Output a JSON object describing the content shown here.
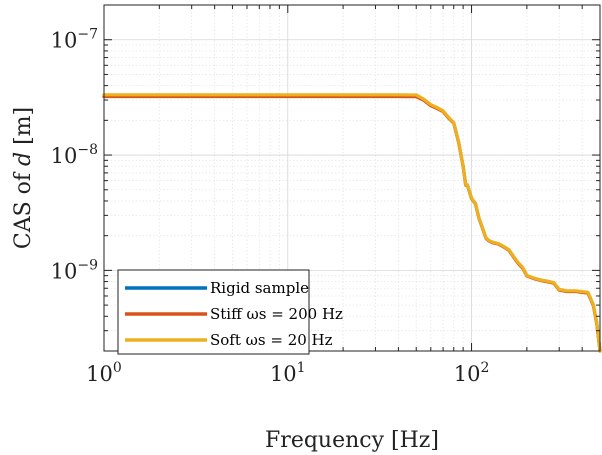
{
  "chart_data": {
    "type": "line",
    "title": "",
    "xlabel": "Frequency [Hz]",
    "ylabel": "CAS of d [m]",
    "xscale": "log",
    "yscale": "log",
    "xlim": [
      1,
      500
    ],
    "ylim": [
      2e-10,
      2e-07
    ],
    "grid": true,
    "legend_position": "bottom-left",
    "x_ticks": [
      {
        "value": 1,
        "base": "10",
        "exp": "0"
      },
      {
        "value": 10,
        "base": "10",
        "exp": "1"
      },
      {
        "value": 100,
        "base": "10",
        "exp": "2"
      }
    ],
    "y_ticks": [
      {
        "value": 1e-09,
        "base": "10",
        "exp": "−9"
      },
      {
        "value": 1e-08,
        "base": "10",
        "exp": "−8"
      },
      {
        "value": 1e-07,
        "base": "10",
        "exp": "−7"
      }
    ],
    "x": [
      1,
      10,
      40,
      50,
      55,
      60,
      65,
      70,
      75,
      80,
      85,
      90,
      93,
      95,
      100,
      105,
      110,
      115,
      120,
      125,
      130,
      140,
      150,
      160,
      170,
      180,
      190,
      200,
      220,
      240,
      260,
      280,
      300,
      330,
      370,
      400,
      430,
      460,
      480,
      500
    ],
    "series": [
      {
        "name": "Rigid sample",
        "color": "#0072BD",
        "values": [
          3.25e-08,
          3.25e-08,
          3.25e-08,
          3.24e-08,
          3e-08,
          2.7e-08,
          2.55e-08,
          2.4e-08,
          2.1e-08,
          1.9e-08,
          1.3e-08,
          8e-09,
          5.5e-09,
          5.5e-09,
          4.2e-09,
          3.8e-09,
          2.8e-09,
          2.3e-09,
          1.9e-09,
          1.8e-09,
          1.75e-09,
          1.7e-09,
          1.6e-09,
          1.5e-09,
          1.3e-09,
          1.15e-09,
          1.05e-09,
          9e-10,
          8.5e-10,
          8.2e-10,
          8e-10,
          7.8e-10,
          6.8e-10,
          6.6e-10,
          6.6e-10,
          6.5e-10,
          6.4e-10,
          5e-10,
          3.5e-10,
          2e-10
        ]
      },
      {
        "name": "Stiff ω_s = 200 Hz",
        "color": "#D95319",
        "values": [
          3.22e-08,
          3.22e-08,
          3.22e-08,
          3.21e-08,
          2.98e-08,
          2.68e-08,
          2.53e-08,
          2.38e-08,
          2.09e-08,
          1.89e-08,
          1.29e-08,
          7.95e-09,
          5.47e-09,
          5.47e-09,
          4.18e-09,
          3.78e-09,
          2.79e-09,
          2.29e-09,
          1.89e-09,
          1.79e-09,
          1.74e-09,
          1.69e-09,
          1.59e-09,
          1.49e-09,
          1.29e-09,
          1.14e-09,
          1.04e-09,
          8.95e-10,
          8.45e-10,
          8.15e-10,
          7.95e-10,
          7.75e-10,
          6.75e-10,
          6.55e-10,
          6.55e-10,
          6.45e-10,
          6.35e-10,
          4.95e-10,
          3.45e-10,
          2e-10
        ]
      },
      {
        "name": "Soft ω_s = 20 Hz",
        "color": "#EDB120",
        "values": [
          3.33e-08,
          3.33e-08,
          3.33e-08,
          3.32e-08,
          3.05e-08,
          2.74e-08,
          2.58e-08,
          2.42e-08,
          2.12e-08,
          1.91e-08,
          1.31e-08,
          8.05e-09,
          5.53e-09,
          5.53e-09,
          4.22e-09,
          3.82e-09,
          2.81e-09,
          2.31e-09,
          1.91e-09,
          1.81e-09,
          1.76e-09,
          1.71e-09,
          1.61e-09,
          1.51e-09,
          1.31e-09,
          1.16e-09,
          1.06e-09,
          9.05e-10,
          8.55e-10,
          8.25e-10,
          8.05e-10,
          7.85e-10,
          6.85e-10,
          6.65e-10,
          6.65e-10,
          6.55e-10,
          6.45e-10,
          5.05e-10,
          3.55e-10,
          2e-10
        ]
      }
    ],
    "legend": [
      {
        "text": "Rigid sample",
        "color": "#0072BD"
      },
      {
        "text": "Stiff ωs = 200 Hz",
        "color": "#D95319"
      },
      {
        "text": "Soft ωs = 20 Hz",
        "color": "#EDB120"
      }
    ]
  }
}
